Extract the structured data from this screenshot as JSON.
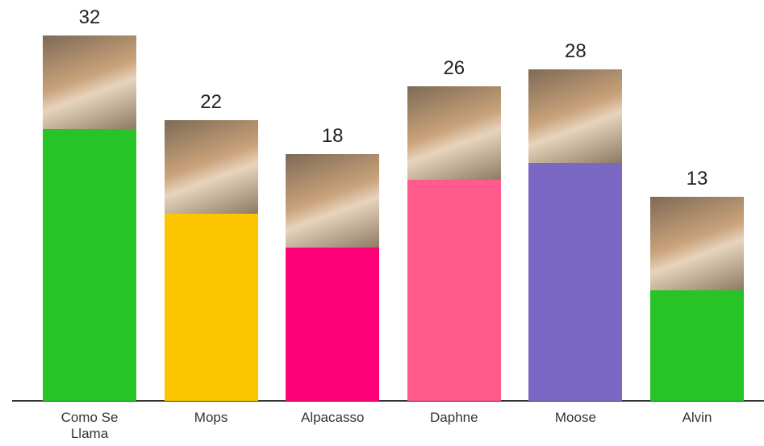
{
  "chart_data": {
    "type": "bar",
    "categories": [
      "Como Se Llama",
      "Mops",
      "Alpacasso",
      "Daphne",
      "Moose",
      "Alvin"
    ],
    "values": [
      32,
      22,
      18,
      26,
      28,
      13
    ],
    "colors": [
      "#27c427",
      "#fdc500",
      "#fe0078",
      "#ff5a8c",
      "#7b68c4",
      "#27c427"
    ]
  }
}
